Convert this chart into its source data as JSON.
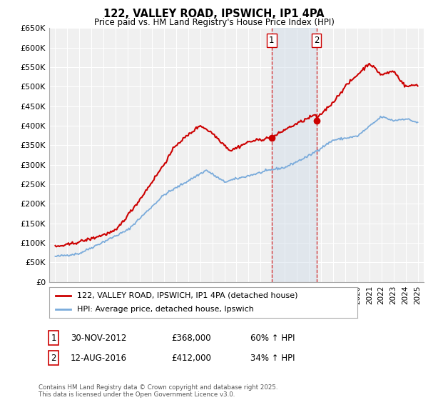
{
  "title": "122, VALLEY ROAD, IPSWICH, IP1 4PA",
  "subtitle": "Price paid vs. HM Land Registry's House Price Index (HPI)",
  "red_line_label": "122, VALLEY ROAD, IPSWICH, IP1 4PA (detached house)",
  "blue_line_label": "HPI: Average price, detached house, Ipswich",
  "transaction1_label": "1",
  "transaction1_date": "30-NOV-2012",
  "transaction1_price": "£368,000",
  "transaction1_hpi": "60% ↑ HPI",
  "transaction2_label": "2",
  "transaction2_date": "12-AUG-2016",
  "transaction2_price": "£412,000",
  "transaction2_hpi": "34% ↑ HPI",
  "footnote": "Contains HM Land Registry data © Crown copyright and database right 2025.\nThis data is licensed under the Open Government Licence v3.0.",
  "vline1_x": 2012.917,
  "vline2_x": 2016.617,
  "marker1_y": 368000,
  "marker2_y": 412000,
  "ylim": [
    0,
    650000
  ],
  "xlim": [
    1994.5,
    2025.5
  ],
  "yticks": [
    0,
    50000,
    100000,
    150000,
    200000,
    250000,
    300000,
    350000,
    400000,
    450000,
    500000,
    550000,
    600000,
    650000
  ],
  "background_color": "#f0f0f0",
  "grid_color": "#ffffff",
  "red_color": "#cc0000",
  "blue_color": "#7aabdb",
  "shade_color": "#c8d8e8"
}
